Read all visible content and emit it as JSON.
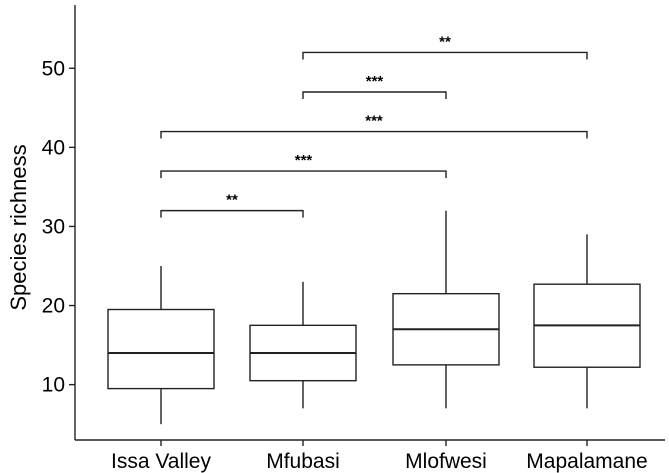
{
  "chart_data": {
    "type": "boxplot",
    "title": "",
    "xlabel": "",
    "ylabel": "Species richness",
    "ylim": [
      3,
      58
    ],
    "yticks": [
      10,
      20,
      30,
      40,
      50
    ],
    "grid": false,
    "categories": [
      "Issa Valley",
      "Mfubasi",
      "Mlofwesi",
      "Mapalamane"
    ],
    "boxes": [
      {
        "category": "Issa Valley",
        "min": 5,
        "q1": 9.5,
        "median": 14,
        "q3": 19.5,
        "max": 25
      },
      {
        "category": "Mfubasi",
        "min": 7,
        "q1": 10.5,
        "median": 14,
        "q3": 17.5,
        "max": 23
      },
      {
        "category": "Mlofwesi",
        "min": 7,
        "q1": 12.5,
        "median": 17,
        "q3": 21.5,
        "max": 32
      },
      {
        "category": "Mapalamane",
        "min": 7,
        "q1": 12.2,
        "median": 17.5,
        "q3": 22.7,
        "max": 29
      }
    ],
    "significance": [
      {
        "from": "Issa Valley",
        "to": "Mfubasi",
        "y": 32,
        "label": "**"
      },
      {
        "from": "Issa Valley",
        "to": "Mlofwesi",
        "y": 37,
        "label": "***"
      },
      {
        "from": "Issa Valley",
        "to": "Mapalamane",
        "y": 42,
        "label": "***"
      },
      {
        "from": "Mfubasi",
        "to": "Mlofwesi",
        "y": 47,
        "label": "***"
      },
      {
        "from": "Mfubasi",
        "to": "Mapalamane",
        "y": 52,
        "label": "**"
      }
    ]
  }
}
